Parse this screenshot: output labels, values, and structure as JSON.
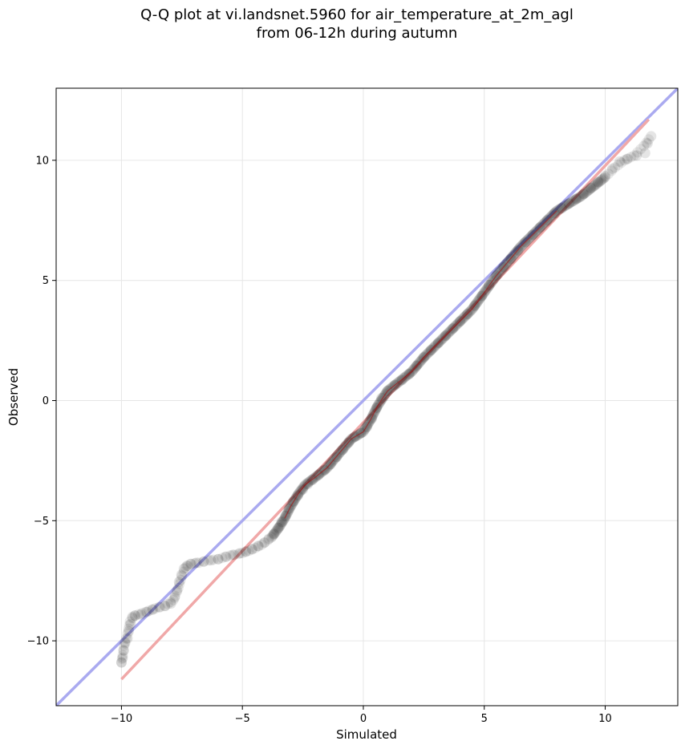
{
  "chart_data": {
    "type": "scatter",
    "title_line1": "Q-Q plot at vi.landsnet.5960 for air_temperature_at_2m_agl",
    "title_line2": "from 06-12h during autumn",
    "xlabel": "Simulated",
    "ylabel": "Observed",
    "xlim": [
      -12.7,
      13.0
    ],
    "ylim": [
      -12.7,
      13.0
    ],
    "x_ticks": [
      -10,
      -5,
      0,
      5,
      10
    ],
    "y_ticks": [
      -10,
      -5,
      0,
      5,
      10
    ],
    "x_tick_labels": [
      "−10",
      "−5",
      "0",
      "5",
      "10"
    ],
    "y_tick_labels": [
      "−10",
      "−5",
      "0",
      "5",
      "10"
    ],
    "grid": true,
    "colors": {
      "identity_line": "#aaaaf0",
      "fit_line": "#f0a8a8",
      "points": "#000000",
      "center_trace": "#b00000"
    },
    "reference_lines": [
      {
        "kind": "identity",
        "x": [
          -12.7,
          13.0
        ],
        "y": [
          -12.7,
          13.0
        ]
      },
      {
        "kind": "fit",
        "x": [
          -10.0,
          11.8
        ],
        "y": [
          -11.6,
          11.7
        ]
      }
    ],
    "quantile_curve": [
      [
        -10.0,
        -10.9
      ],
      [
        -9.95,
        -10.6
      ],
      [
        -9.9,
        -10.2
      ],
      [
        -9.8,
        -9.9
      ],
      [
        -9.7,
        -9.5
      ],
      [
        -9.65,
        -9.2
      ],
      [
        -9.55,
        -9.0
      ],
      [
        -9.3,
        -8.9
      ],
      [
        -9.0,
        -8.8
      ],
      [
        -8.6,
        -8.65
      ],
      [
        -8.2,
        -8.55
      ],
      [
        -7.85,
        -8.3
      ],
      [
        -7.65,
        -7.8
      ],
      [
        -7.5,
        -7.3
      ],
      [
        -7.35,
        -6.95
      ],
      [
        -7.15,
        -6.8
      ],
      [
        -6.8,
        -6.75
      ],
      [
        -6.4,
        -6.65
      ],
      [
        -6.0,
        -6.6
      ],
      [
        -5.5,
        -6.45
      ],
      [
        -5.0,
        -6.35
      ],
      [
        -4.6,
        -6.2
      ],
      [
        -4.2,
        -6.0
      ],
      [
        -3.8,
        -5.7
      ],
      [
        -3.5,
        -5.3
      ],
      [
        -3.25,
        -4.9
      ],
      [
        -3.0,
        -4.4
      ],
      [
        -2.7,
        -3.9
      ],
      [
        -2.4,
        -3.5
      ],
      [
        -2.0,
        -3.2
      ],
      [
        -1.5,
        -2.8
      ],
      [
        -1.0,
        -2.2
      ],
      [
        -0.5,
        -1.6
      ],
      [
        0.0,
        -1.3
      ],
      [
        0.3,
        -0.8
      ],
      [
        0.6,
        -0.2
      ],
      [
        1.0,
        0.4
      ],
      [
        1.5,
        0.8
      ],
      [
        2.0,
        1.2
      ],
      [
        2.5,
        1.8
      ],
      [
        3.0,
        2.3
      ],
      [
        3.5,
        2.8
      ],
      [
        4.0,
        3.3
      ],
      [
        4.5,
        3.8
      ],
      [
        5.0,
        4.5
      ],
      [
        5.5,
        5.2
      ],
      [
        6.0,
        5.8
      ],
      [
        6.5,
        6.4
      ],
      [
        7.0,
        6.9
      ],
      [
        7.5,
        7.4
      ],
      [
        8.0,
        7.9
      ],
      [
        8.5,
        8.2
      ],
      [
        9.0,
        8.5
      ],
      [
        9.5,
        8.9
      ],
      [
        10.0,
        9.3
      ],
      [
        10.4,
        9.7
      ],
      [
        10.8,
        10.0
      ],
      [
        11.2,
        10.2
      ],
      [
        11.6,
        10.6
      ],
      [
        11.9,
        11.0
      ]
    ],
    "points": [
      [
        -10.0,
        -10.9
      ],
      [
        -9.95,
        -10.7
      ],
      [
        -9.9,
        -10.4
      ],
      [
        -9.85,
        -10.1
      ],
      [
        -9.75,
        -9.9
      ],
      [
        -9.7,
        -9.6
      ],
      [
        -9.62,
        -9.3
      ],
      [
        -9.55,
        -9.05
      ],
      [
        -9.45,
        -8.95
      ],
      [
        -9.2,
        -8.9
      ],
      [
        -8.95,
        -8.8
      ],
      [
        -8.7,
        -8.7
      ],
      [
        -8.45,
        -8.6
      ],
      [
        -8.2,
        -8.55
      ],
      [
        -7.95,
        -8.45
      ],
      [
        -7.8,
        -8.2
      ],
      [
        -7.7,
        -7.9
      ],
      [
        -7.62,
        -7.55
      ],
      [
        -7.52,
        -7.25
      ],
      [
        -7.42,
        -7.0
      ],
      [
        -7.3,
        -6.88
      ],
      [
        -7.12,
        -6.8
      ],
      [
        -6.9,
        -6.75
      ],
      [
        -6.6,
        -6.7
      ],
      [
        -6.3,
        -6.65
      ],
      [
        -6.0,
        -6.6
      ],
      [
        -5.7,
        -6.5
      ],
      [
        -5.4,
        -6.42
      ],
      [
        -5.1,
        -6.35
      ],
      [
        -4.85,
        -6.28
      ],
      [
        -4.6,
        -6.18
      ],
      [
        -4.35,
        -6.05
      ],
      [
        -4.1,
        -5.92
      ],
      [
        -3.9,
        -5.75
      ],
      [
        -3.7,
        -5.55
      ],
      [
        -3.52,
        -5.3
      ],
      [
        -3.38,
        -5.05
      ],
      [
        -3.22,
        -4.8
      ],
      [
        -3.08,
        -4.5
      ],
      [
        -2.9,
        -4.2
      ],
      [
        -2.7,
        -3.95
      ],
      [
        -2.5,
        -3.7
      ],
      [
        -2.3,
        -3.48
      ],
      [
        -2.1,
        -3.3
      ],
      [
        -1.85,
        -3.1
      ],
      [
        -1.6,
        -2.9
      ],
      [
        -1.35,
        -2.65
      ],
      [
        -1.1,
        -2.35
      ],
      [
        -0.85,
        -2.05
      ],
      [
        -0.6,
        -1.75
      ],
      [
        -0.35,
        -1.5
      ],
      [
        -0.1,
        -1.35
      ],
      [
        0.15,
        -1.1
      ],
      [
        0.35,
        -0.75
      ],
      [
        0.55,
        -0.3
      ],
      [
        0.75,
        0.1
      ],
      [
        1.0,
        0.4
      ],
      [
        1.3,
        0.65
      ],
      [
        1.6,
        0.85
      ],
      [
        1.9,
        1.1
      ],
      [
        2.2,
        1.45
      ],
      [
        2.5,
        1.8
      ],
      [
        2.8,
        2.1
      ],
      [
        3.1,
        2.4
      ],
      [
        3.4,
        2.7
      ],
      [
        3.7,
        3.0
      ],
      [
        4.0,
        3.3
      ],
      [
        4.3,
        3.6
      ],
      [
        4.6,
        3.95
      ],
      [
        4.9,
        4.35
      ],
      [
        5.2,
        4.8
      ],
      [
        5.5,
        5.2
      ],
      [
        5.8,
        5.55
      ],
      [
        6.1,
        5.9
      ],
      [
        6.4,
        6.25
      ],
      [
        6.7,
        6.6
      ],
      [
        7.0,
        6.9
      ],
      [
        7.3,
        7.2
      ],
      [
        7.6,
        7.5
      ],
      [
        7.9,
        7.8
      ],
      [
        8.2,
        8.0
      ],
      [
        8.5,
        8.2
      ],
      [
        8.8,
        8.4
      ],
      [
        9.1,
        8.6
      ],
      [
        9.4,
        8.85
      ],
      [
        9.7,
        9.1
      ],
      [
        10.0,
        9.35
      ],
      [
        10.3,
        9.65
      ],
      [
        10.6,
        9.95
      ],
      [
        10.9,
        10.05
      ],
      [
        11.3,
        10.2
      ],
      [
        11.65,
        10.3
      ],
      [
        11.75,
        10.7
      ],
      [
        11.9,
        11.0
      ]
    ]
  }
}
